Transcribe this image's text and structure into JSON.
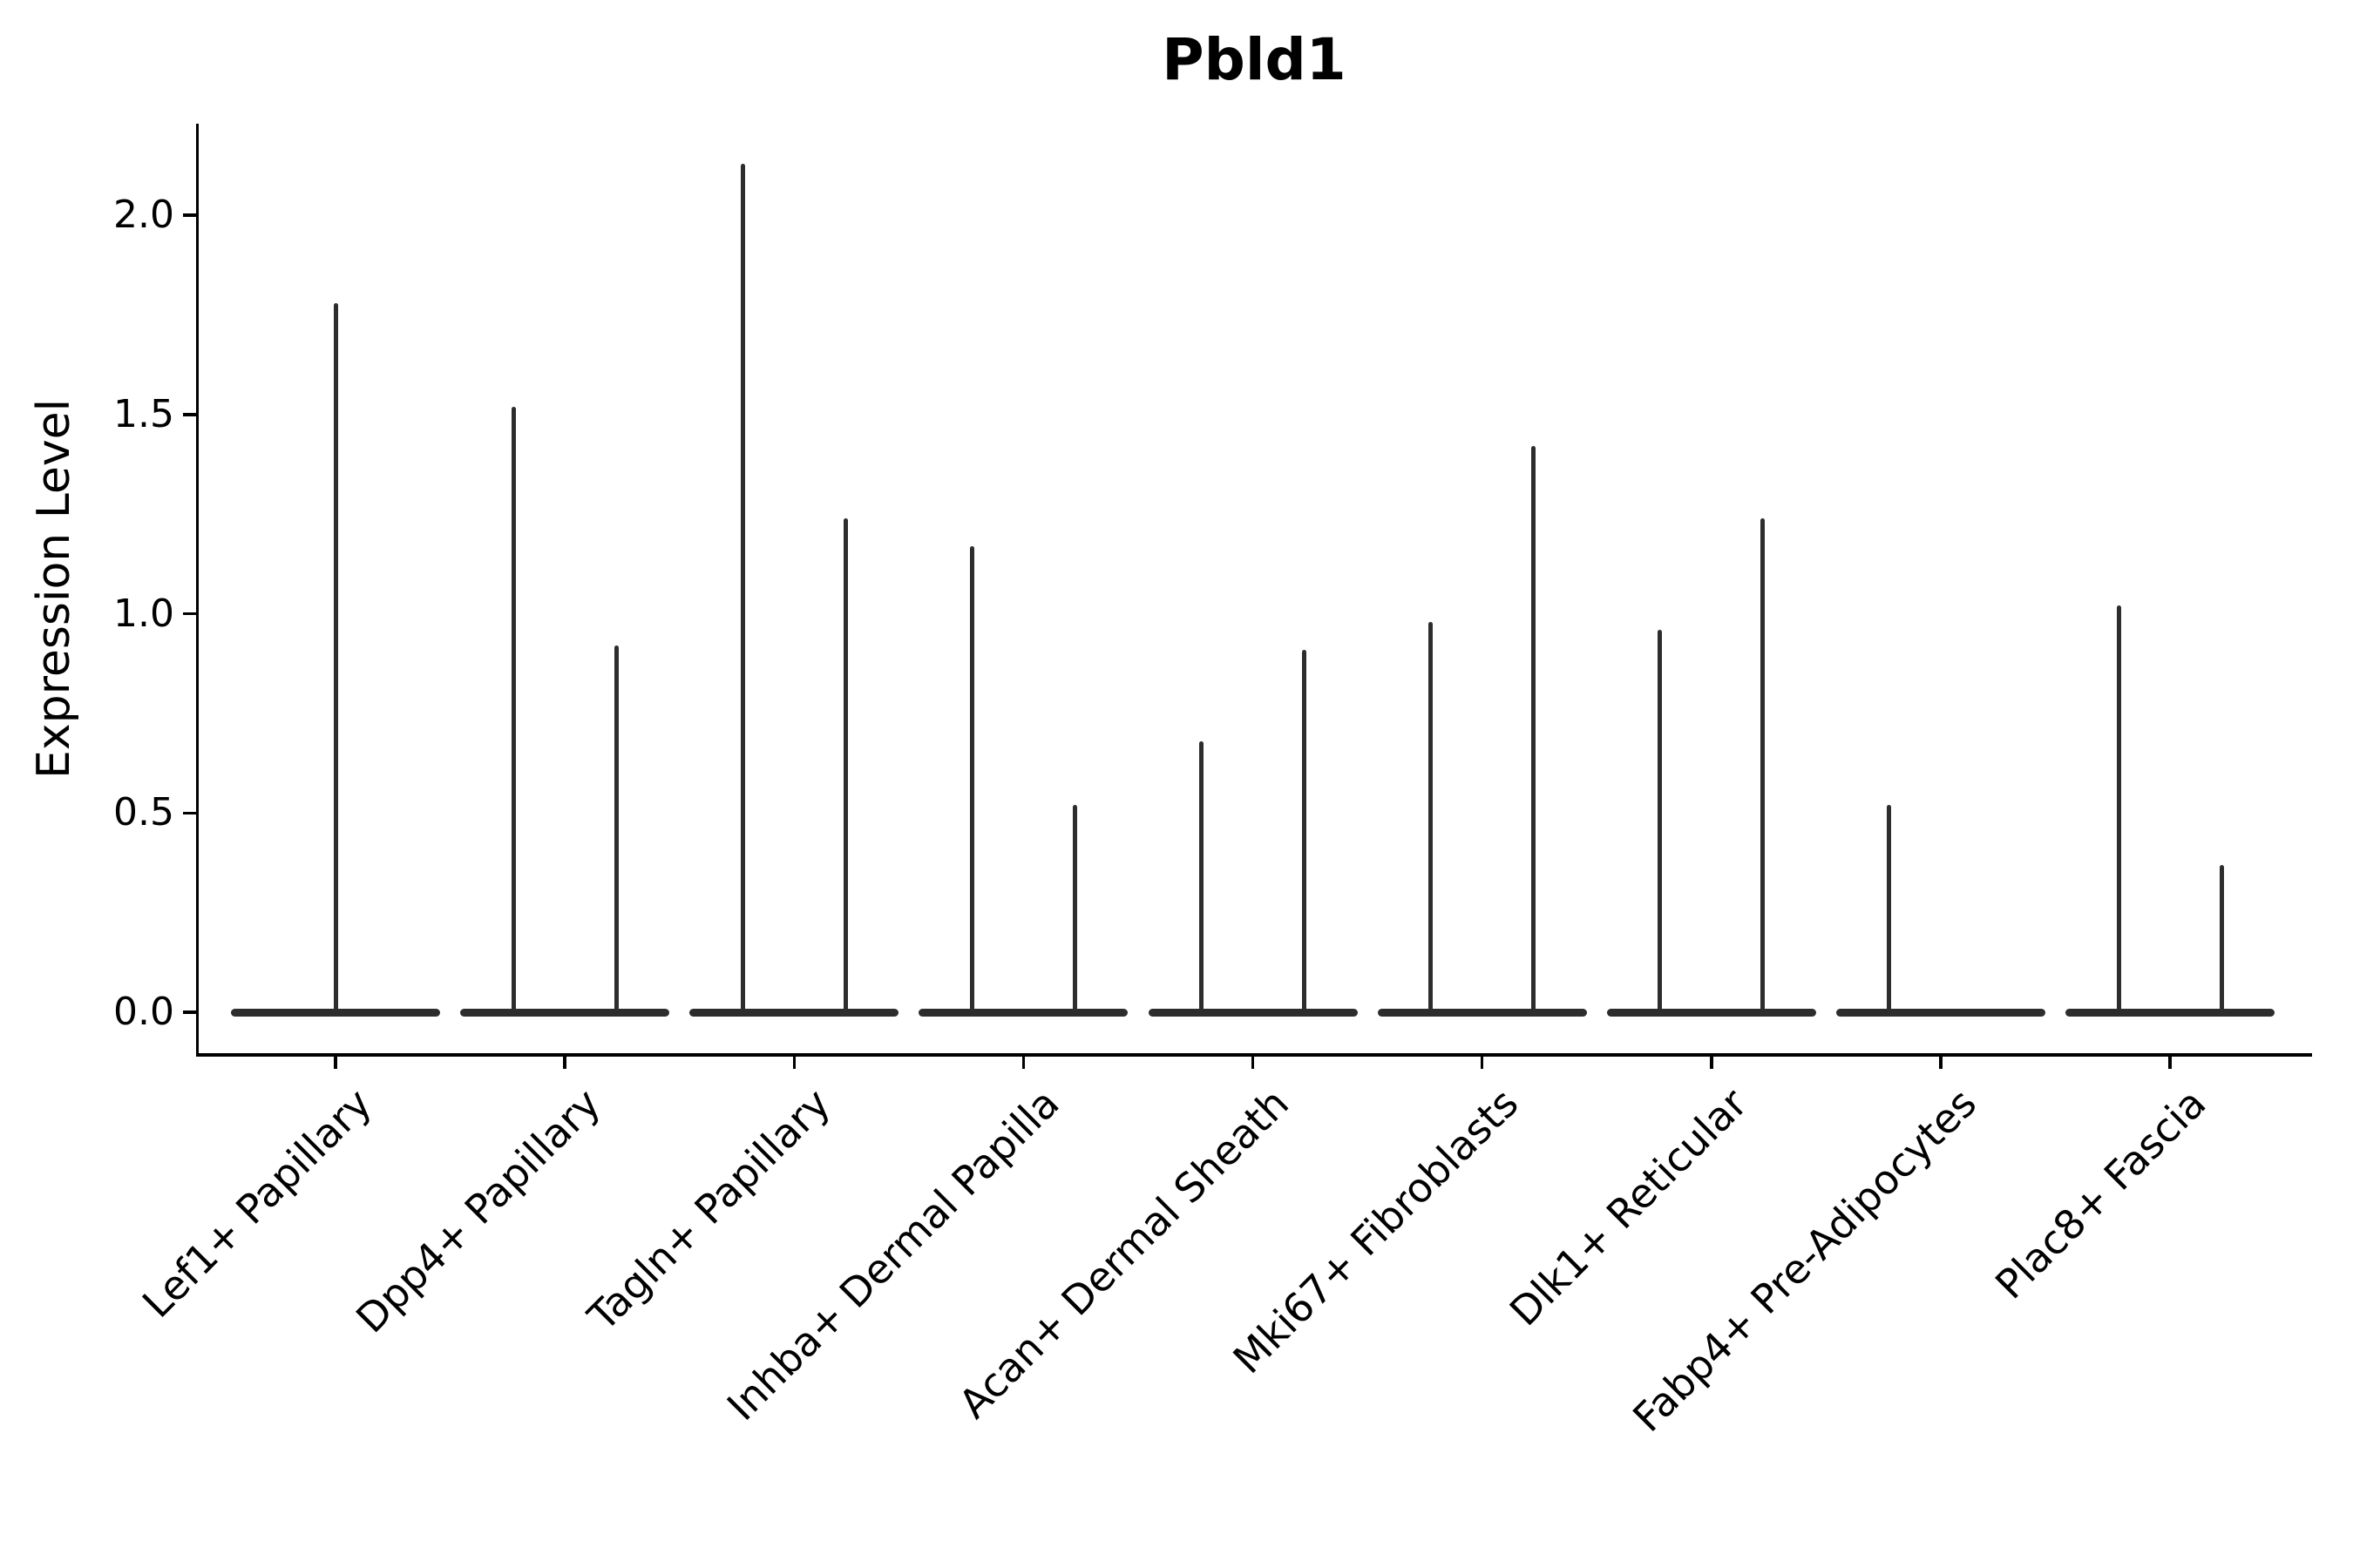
{
  "figure": {
    "title": "Pbld1",
    "y_axis": {
      "label": "Expression Level",
      "tick_labels": [
        "2.0",
        "1.5",
        "1.0",
        "0.5",
        "0.0"
      ]
    },
    "x_axis": {
      "label": "",
      "tick_labels": [
        "Lef1+ Papillary",
        "Dpp4+ Papillary",
        "Tagln+ Papillary",
        "Inhba+ Dermal Papilla",
        "Acan+ Dermal Sheath",
        "Mki67+ Fibroblasts",
        "Dlk1+ Reticular",
        "Fabp4+ Pre-Adipocytes",
        "Plac8+ Fascia"
      ]
    }
  },
  "chart_data": {
    "type": "violin",
    "title": "Pbld1",
    "xlabel": "",
    "ylabel": "Expression Level",
    "yticks": [
      0.0,
      0.5,
      1.0,
      1.5,
      2.0
    ],
    "ylim": [
      0,
      2.23
    ],
    "grid": false,
    "legend": "none",
    "style": "very thin spike-shaped violins (most cells at zero) with a flat wide base at expression 0; monochrome dark gray on white",
    "categories": [
      "Lef1+ Papillary",
      "Dpp4+ Papillary",
      "Tagln+ Papillary",
      "Inhba+ Dermal Papilla",
      "Acan+ Dermal Sheath",
      "Mki67+ Fibroblasts",
      "Dlk1+ Reticular",
      "Fabp4+ Pre-Adipocytes",
      "Plac8+ Fascia"
    ],
    "violins": [
      {
        "category": "Lef1+ Papillary",
        "spikes": [
          {
            "position": "center",
            "max_expression": 1.78
          }
        ]
      },
      {
        "category": "Dpp4+ Papillary",
        "spikes": [
          {
            "position": "left",
            "max_expression": 1.52
          },
          {
            "position": "right",
            "max_expression": 0.92
          }
        ]
      },
      {
        "category": "Tagln+ Papillary",
        "spikes": [
          {
            "position": "left",
            "max_expression": 2.13
          },
          {
            "position": "right",
            "max_expression": 1.24
          }
        ]
      },
      {
        "category": "Inhba+ Dermal Papilla",
        "spikes": [
          {
            "position": "left",
            "max_expression": 1.17
          },
          {
            "position": "right",
            "max_expression": 0.52
          }
        ]
      },
      {
        "category": "Acan+ Dermal Sheath",
        "spikes": [
          {
            "position": "left",
            "max_expression": 0.68
          },
          {
            "position": "right",
            "max_expression": 0.91
          }
        ]
      },
      {
        "category": "Mki67+ Fibroblasts",
        "spikes": [
          {
            "position": "left",
            "max_expression": 0.98
          },
          {
            "position": "right",
            "max_expression": 1.42
          }
        ]
      },
      {
        "category": "Dlk1+ Reticular",
        "spikes": [
          {
            "position": "left",
            "max_expression": 0.96
          },
          {
            "position": "right",
            "max_expression": 1.24
          }
        ]
      },
      {
        "category": "Fabp4+ Pre-Adipocytes",
        "spikes": [
          {
            "position": "left",
            "max_expression": 0.52
          }
        ]
      },
      {
        "category": "Plac8+ Fascia",
        "spikes": [
          {
            "position": "left",
            "max_expression": 1.02
          },
          {
            "position": "right",
            "max_expression": 0.37
          }
        ]
      }
    ],
    "colors": {
      "violin": "#2d2d2d",
      "axis": "#000000",
      "text": "#000000",
      "background": "#ffffff"
    }
  }
}
